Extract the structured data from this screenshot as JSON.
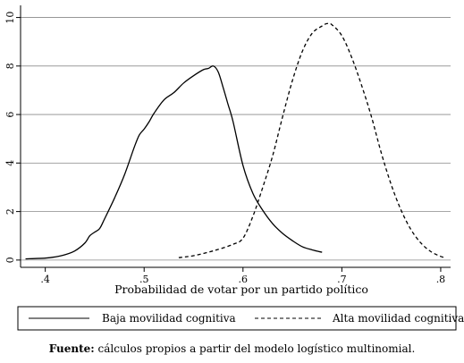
{
  "chart_data": {
    "type": "line",
    "title": "",
    "xlabel": "Probabilidad de votar por un partido político",
    "ylabel": "",
    "xlim": [
      0.375,
      0.81
    ],
    "ylim": [
      -0.3,
      10.5
    ],
    "xticks": [
      0.4,
      0.5,
      0.6,
      0.7,
      0.8
    ],
    "xtick_labels": [
      ".4",
      ".5",
      ".6",
      ".7",
      ".8"
    ],
    "yticks": [
      0,
      2,
      4,
      6,
      8,
      10
    ],
    "ytick_labels": [
      "0",
      "2",
      "4",
      "6",
      "8",
      "10"
    ],
    "grid": true,
    "legend_position": "bottom",
    "series": [
      {
        "name": "Baja movilidad cognitiva",
        "style": "solid",
        "color": "#000000",
        "x": [
          0.38,
          0.4,
          0.41,
          0.42,
          0.43,
          0.44,
          0.445,
          0.45,
          0.455,
          0.46,
          0.47,
          0.48,
          0.49,
          0.495,
          0.5,
          0.505,
          0.51,
          0.52,
          0.53,
          0.54,
          0.55,
          0.56,
          0.565,
          0.57,
          0.575,
          0.58,
          0.585,
          0.59,
          0.6,
          0.61,
          0.62,
          0.63,
          0.64,
          0.65,
          0.66,
          0.67,
          0.68
        ],
        "y": [
          0.05,
          0.08,
          0.13,
          0.22,
          0.38,
          0.7,
          1.0,
          1.15,
          1.3,
          1.7,
          2.55,
          3.5,
          4.65,
          5.15,
          5.4,
          5.7,
          6.05,
          6.6,
          6.9,
          7.3,
          7.6,
          7.85,
          7.9,
          8.0,
          7.75,
          7.1,
          6.4,
          5.7,
          3.9,
          2.75,
          2.05,
          1.5,
          1.1,
          0.8,
          0.55,
          0.42,
          0.32
        ]
      },
      {
        "name": "Alta movilidad cognitiva",
        "style": "dashed",
        "color": "#000000",
        "x": [
          0.535,
          0.55,
          0.57,
          0.59,
          0.6,
          0.61,
          0.62,
          0.63,
          0.64,
          0.65,
          0.66,
          0.67,
          0.68,
          0.685,
          0.69,
          0.7,
          0.71,
          0.72,
          0.73,
          0.74,
          0.75,
          0.76,
          0.77,
          0.78,
          0.79,
          0.8,
          0.805
        ],
        "y": [
          0.1,
          0.18,
          0.38,
          0.65,
          0.9,
          1.8,
          3.0,
          4.3,
          5.9,
          7.4,
          8.6,
          9.35,
          9.65,
          9.75,
          9.7,
          9.25,
          8.35,
          7.2,
          5.9,
          4.4,
          3.1,
          2.05,
          1.25,
          0.7,
          0.35,
          0.15,
          0.1
        ]
      }
    ]
  },
  "source_note": {
    "label": "Fuente:",
    "text": " cálculos propios a partir del modelo logístico multinomial."
  }
}
